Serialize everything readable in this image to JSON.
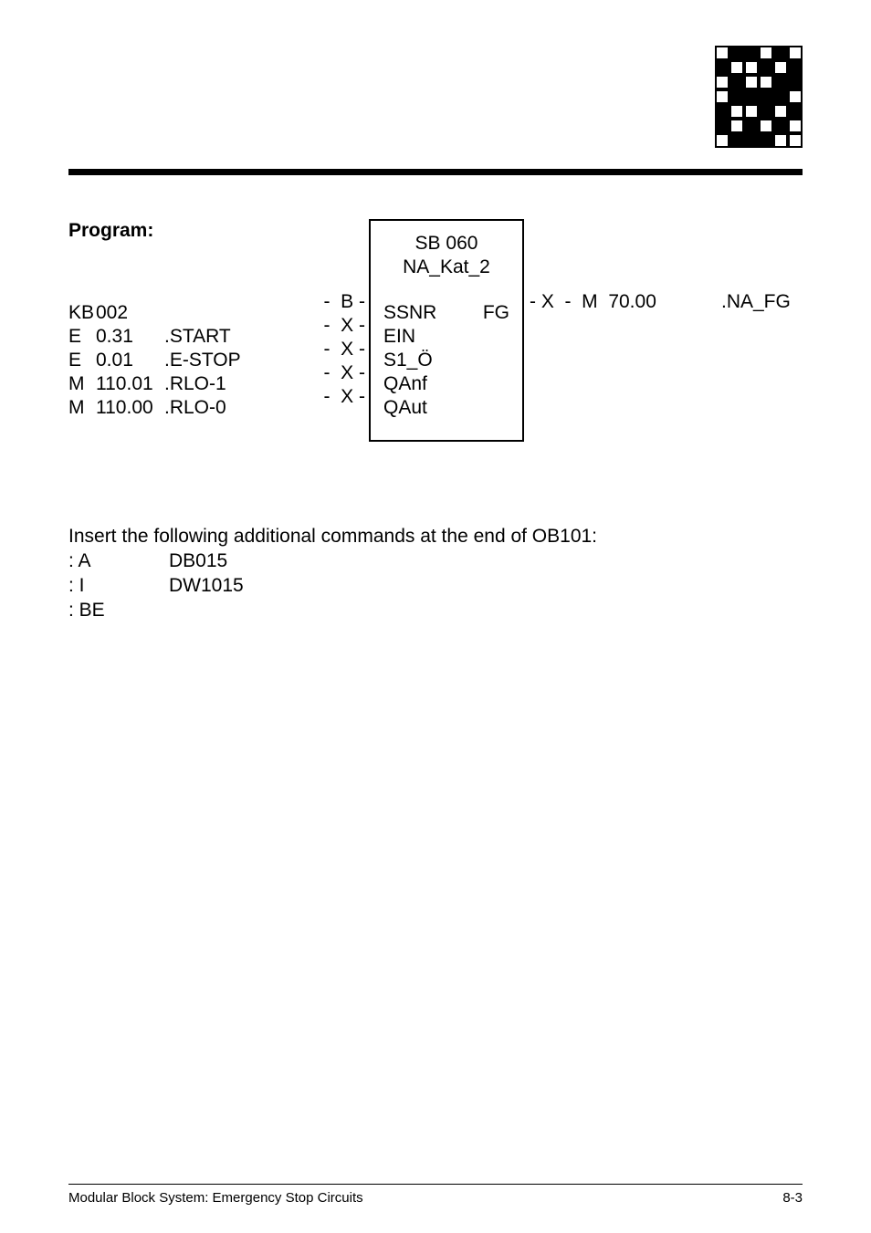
{
  "logo": {
    "rows": [
      [
        "wb",
        "bl",
        "bl",
        "wb",
        "bl",
        "wb"
      ],
      [
        "bl",
        "wb",
        "wb",
        "bl",
        "wb",
        "bl"
      ],
      [
        "wb",
        "bl",
        "wb",
        "wb",
        "bl",
        "bl"
      ],
      [
        "wb",
        "bl",
        "bl",
        "bl",
        "bl",
        "wb"
      ],
      [
        "bl",
        "wb",
        "wb",
        "bl",
        "wb",
        "bl"
      ],
      [
        "bl",
        "wb",
        "bl",
        "wb",
        "bl",
        "wb"
      ],
      [
        "wb",
        "bl",
        "bl",
        "bl",
        "wb",
        "wb"
      ]
    ]
  },
  "program_label": "Program:",
  "box": {
    "title1": "SB 060",
    "title2": "NA_Kat_2"
  },
  "rows": [
    {
      "c1": "KB",
      "c2": "002",
      "c3": "",
      "link": "-  B -",
      "inL": "SSNR",
      "inR": "FG",
      "out": "- X  -  M  70.00",
      "outName": ".NA_FG"
    },
    {
      "c1": "E",
      "c2": "0.31",
      "c3": ".START",
      "link": "-  X -",
      "inL": "EIN",
      "inR": "",
      "out": "",
      "outName": ""
    },
    {
      "c1": "E",
      "c2": "0.01",
      "c3": ".E-STOP",
      "link": "-  X -",
      "inL": "S1_Ö",
      "inR": "",
      "out": "",
      "outName": ""
    },
    {
      "c1": "M",
      "c2": "110.01",
      "c3": ".RLO-1",
      "link": "-  X -",
      "inL": "QAnf",
      "inR": "",
      "out": "",
      "outName": ""
    },
    {
      "c1": "M",
      "c2": "110.00",
      "c3": ".RLO-0",
      "link": "-  X -",
      "inL": "QAut",
      "inR": "",
      "out": "",
      "outName": ""
    }
  ],
  "insert": {
    "intro": "Insert the following additional commands at the end of OB101:",
    "lines": [
      {
        "a": ": A",
        "b": "DB015"
      },
      {
        "a": ": I",
        "b": "DW1015"
      },
      {
        "a": ": BE",
        "b": ""
      }
    ]
  },
  "footer": {
    "left": "Modular Block System: Emergency Stop Circuits",
    "right": "8-3"
  }
}
